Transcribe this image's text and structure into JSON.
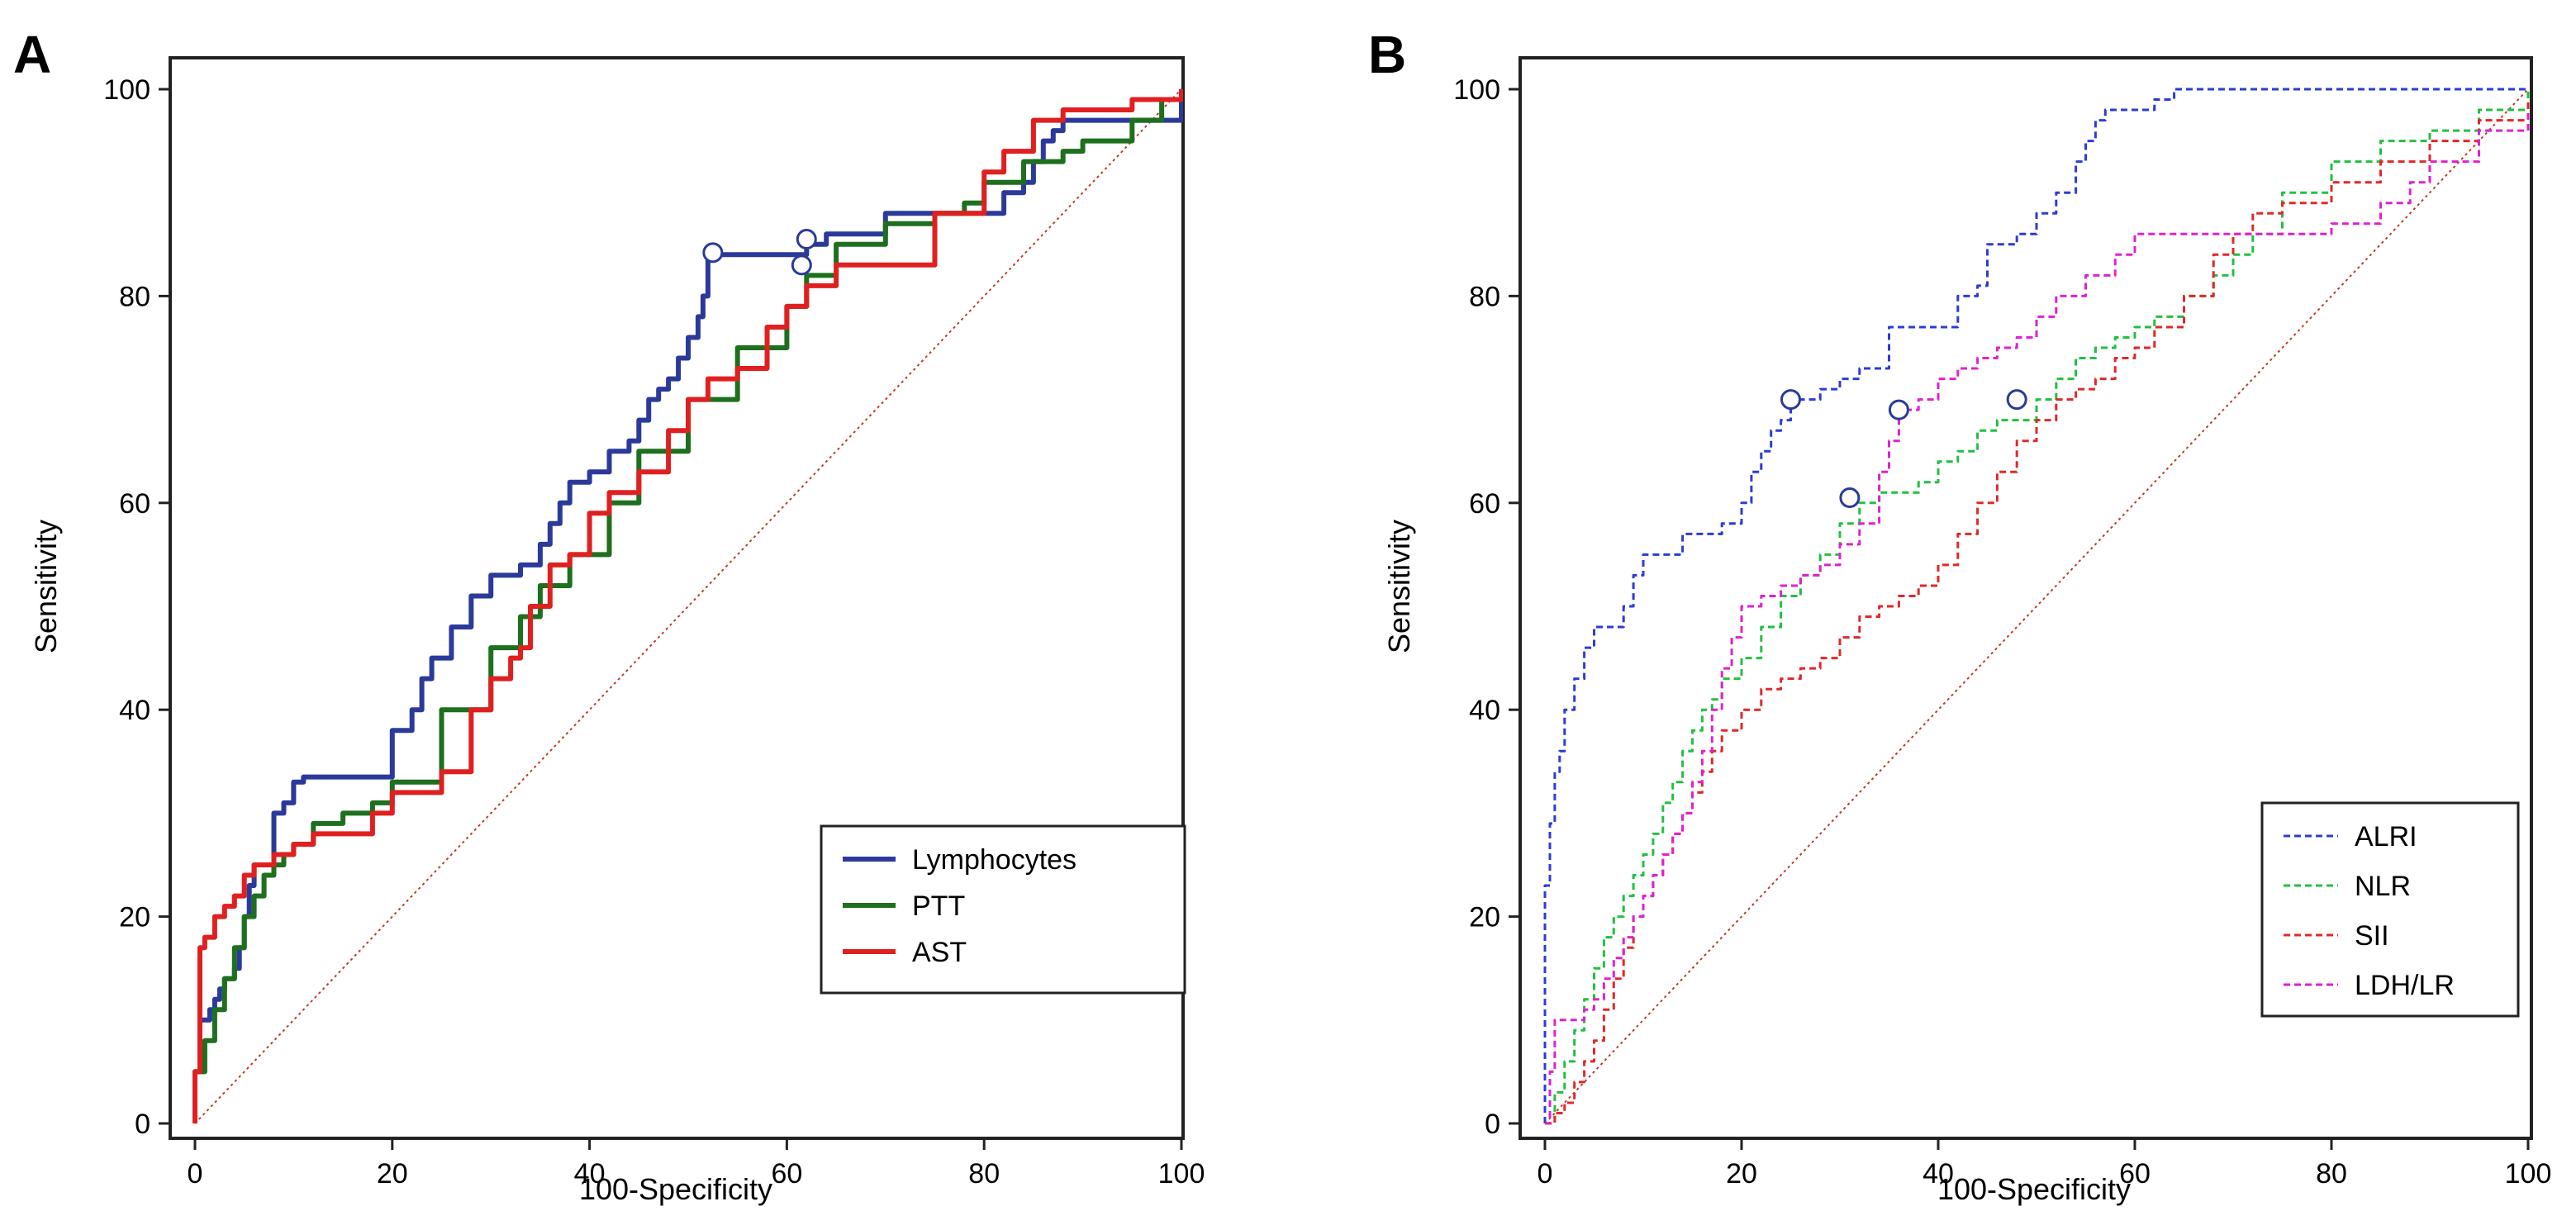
{
  "chart_data": [
    {
      "panel": "A",
      "type": "line",
      "xlabel": "100-Specificity",
      "ylabel": "Sensitivity",
      "xlim": [
        0,
        100
      ],
      "ylim": [
        0,
        100
      ],
      "xticks": [
        "0",
        "20",
        "40",
        "60",
        "80",
        "100"
      ],
      "yticks": [
        "0",
        "20",
        "40",
        "60",
        "80",
        "100"
      ],
      "legend": "bottom-right",
      "reference_line": {
        "x": [
          0,
          100
        ],
        "y": [
          0,
          100
        ],
        "style": "dotted",
        "color": "#c0392b"
      },
      "series": [
        {
          "name": "Lymphocytes",
          "color": "#2b3a9a",
          "style": "solid",
          "x": [
            0,
            0,
            0.5,
            1.5,
            2,
            2.5,
            3,
            4,
            4.5,
            5,
            5.5,
            6,
            8,
            9,
            10,
            11,
            15,
            20,
            22,
            23,
            24,
            26,
            28,
            30,
            32,
            33,
            35,
            36,
            37,
            38,
            40,
            42,
            44,
            45,
            46,
            47,
            48,
            49,
            50,
            51,
            51.5,
            52,
            55,
            60,
            62,
            64,
            66,
            70,
            74,
            78,
            80,
            82,
            84,
            85,
            86,
            87,
            88,
            89,
            90,
            95,
            97,
            97.5,
            100
          ],
          "y": [
            0,
            5,
            10,
            11,
            12,
            13,
            14,
            15,
            17,
            20,
            23,
            25,
            30,
            31,
            33,
            33.5,
            33.5,
            38,
            40,
            43,
            45,
            48,
            51,
            53,
            53,
            54,
            56,
            58,
            60,
            62,
            63,
            65,
            66,
            68,
            70,
            71,
            72,
            74,
            76,
            78,
            80,
            84,
            84,
            84,
            85,
            86,
            86,
            88,
            88,
            88,
            88,
            90,
            91,
            93,
            95,
            96,
            97,
            97,
            97,
            97,
            97,
            97,
            100
          ],
          "highlight_point": [
            52.5,
            84.2
          ]
        },
        {
          "name": "PTT",
          "color": "#1e6f1e",
          "style": "solid",
          "x": [
            0,
            0,
            1,
            2,
            3,
            4,
            5,
            6,
            7,
            8,
            9,
            10,
            12,
            15,
            18,
            20,
            25,
            30,
            33,
            35,
            38,
            42,
            45,
            50,
            55,
            60,
            62,
            65,
            70,
            75,
            78,
            80,
            84,
            88,
            90,
            95,
            98,
            100
          ],
          "y": [
            0,
            5,
            8,
            11,
            14,
            17,
            20,
            22,
            24,
            25,
            26,
            27,
            29,
            30,
            31,
            33,
            40,
            46,
            49,
            52,
            55,
            60,
            65,
            70,
            75,
            79,
            82,
            85,
            87,
            88,
            89,
            91,
            93,
            94,
            95,
            97,
            99,
            100
          ],
          "highlight_point": [
            62,
            85.5
          ]
        },
        {
          "name": "AST",
          "color": "#e02020",
          "style": "solid",
          "x": [
            0,
            0,
            0.5,
            1,
            2,
            3,
            4,
            5,
            6,
            8,
            10,
            12,
            15,
            18,
            20,
            22,
            25,
            28,
            30,
            32,
            33,
            34,
            36,
            38,
            40,
            42,
            45,
            48,
            50,
            52,
            55,
            58,
            60,
            62,
            65,
            70,
            75,
            80,
            82,
            85,
            88,
            90,
            95,
            100
          ],
          "y": [
            0,
            5,
            17,
            18,
            20,
            21,
            22,
            24,
            25,
            26,
            27,
            28,
            28,
            30,
            32,
            32,
            34,
            40,
            43,
            45,
            46,
            50,
            54,
            55,
            59,
            61,
            63,
            67,
            70,
            72,
            73,
            77,
            79,
            81,
            83,
            83,
            88,
            92,
            94,
            97,
            98,
            98,
            99,
            100
          ],
          "highlight_point": [
            61.5,
            83
          ]
        }
      ]
    },
    {
      "panel": "B",
      "type": "line",
      "xlabel": "100-Specificity",
      "ylabel": "Sensitivity",
      "xlim": [
        0,
        100
      ],
      "ylim": [
        0,
        100
      ],
      "xticks": [
        "0",
        "20",
        "40",
        "60",
        "80",
        "100"
      ],
      "yticks": [
        "0",
        "20",
        "40",
        "60",
        "80",
        "100"
      ],
      "legend": "bottom-right",
      "reference_line": {
        "x": [
          0,
          100
        ],
        "y": [
          0,
          100
        ],
        "style": "dotted",
        "color": "#c0392b"
      },
      "series": [
        {
          "name": "ALRI",
          "color": "#2b3cd6",
          "style": "dashed",
          "x": [
            0,
            0,
            0.5,
            1,
            1.5,
            2,
            3,
            4,
            5,
            6,
            8,
            9,
            10,
            12,
            14,
            15,
            18,
            20,
            21,
            22,
            23,
            24,
            25,
            26,
            28,
            30,
            32,
            35,
            40,
            42,
            44,
            45,
            48,
            50,
            52,
            54,
            55,
            56,
            57,
            58,
            60,
            62,
            64,
            70,
            80,
            100
          ],
          "y": [
            0,
            23,
            29,
            34,
            36,
            40,
            43,
            46,
            48,
            48,
            50,
            53,
            55,
            55,
            57,
            57,
            58,
            60,
            63,
            65,
            67,
            68,
            70,
            70,
            71,
            72,
            73,
            77,
            77,
            80,
            81,
            85,
            86,
            88,
            90,
            93,
            95,
            97,
            98,
            98,
            98,
            99,
            100,
            100,
            100,
            100
          ],
          "highlight_point": [
            25,
            70
          ]
        },
        {
          "name": "NLR",
          "color": "#20c040",
          "style": "dashed",
          "x": [
            0,
            1,
            2,
            3,
            4,
            5,
            6,
            7,
            8,
            9,
            10,
            11,
            12,
            13,
            14,
            15,
            16,
            17,
            18,
            20,
            22,
            24,
            26,
            28,
            30,
            32,
            34,
            36,
            38,
            40,
            42,
            44,
            46,
            48,
            50,
            52,
            54,
            56,
            58,
            60,
            62,
            65,
            68,
            70,
            72,
            75,
            80,
            85,
            90,
            95,
            100
          ],
          "y": [
            0,
            3,
            6,
            9,
            12,
            15,
            18,
            20,
            22,
            24,
            26,
            28,
            31,
            33,
            36,
            38,
            40,
            41,
            43,
            45,
            48,
            51,
            53,
            55,
            58,
            60,
            61,
            61,
            62,
            64,
            65,
            67,
            68,
            68,
            70,
            72,
            74,
            75,
            76,
            77,
            78,
            80,
            82,
            84,
            86,
            90,
            93,
            95,
            96,
            98,
            100
          ],
          "highlight_point": [
            31,
            60.5
          ]
        },
        {
          "name": "SII",
          "color": "#e02828",
          "style": "dashed",
          "x": [
            0,
            1,
            2,
            3,
            4,
            5,
            6,
            7,
            8,
            9,
            10,
            11,
            12,
            13,
            14,
            15,
            16,
            17,
            18,
            20,
            22,
            24,
            26,
            28,
            30,
            32,
            34,
            36,
            38,
            40,
            42,
            44,
            46,
            48,
            50,
            52,
            54,
            56,
            58,
            60,
            62,
            65,
            68,
            70,
            72,
            75,
            80,
            85,
            90,
            95,
            100
          ],
          "y": [
            0,
            1,
            2,
            4,
            6,
            8,
            11,
            14,
            17,
            20,
            22,
            24,
            26,
            28,
            30,
            32,
            34,
            36,
            38,
            40,
            42,
            43,
            44,
            45,
            47,
            49,
            50,
            51,
            52,
            54,
            57,
            60,
            63,
            66,
            68,
            70,
            71,
            72,
            74,
            75,
            77,
            80,
            84,
            86,
            88,
            89,
            91,
            93,
            95,
            97,
            99
          ],
          "highlight_point": [
            48,
            70
          ]
        },
        {
          "name": "LDH/LR",
          "color": "#e020d0",
          "style": "dashed",
          "x": [
            0,
            0.5,
            1,
            2,
            3,
            4,
            5,
            6,
            7,
            8,
            9,
            10,
            11,
            12,
            13,
            14,
            15,
            16,
            17,
            18,
            19,
            20,
            22,
            24,
            26,
            28,
            30,
            32,
            34,
            35,
            36,
            38,
            40,
            42,
            44,
            46,
            48,
            50,
            52,
            55,
            58,
            60,
            65,
            70,
            75,
            80,
            85,
            88,
            90,
            95,
            100
          ],
          "y": [
            0,
            5,
            10,
            10,
            10,
            11,
            12,
            14,
            16,
            18,
            20,
            22,
            24,
            26,
            28,
            30,
            33,
            36,
            40,
            44,
            47,
            50,
            51,
            52,
            53,
            54,
            56,
            58,
            63,
            66,
            69,
            70,
            72,
            73,
            74,
            75,
            76,
            78,
            80,
            82,
            84,
            86,
            86,
            86,
            86,
            87,
            89,
            91,
            93,
            96,
            98
          ],
          "highlight_point": [
            36,
            69
          ]
        }
      ]
    }
  ]
}
